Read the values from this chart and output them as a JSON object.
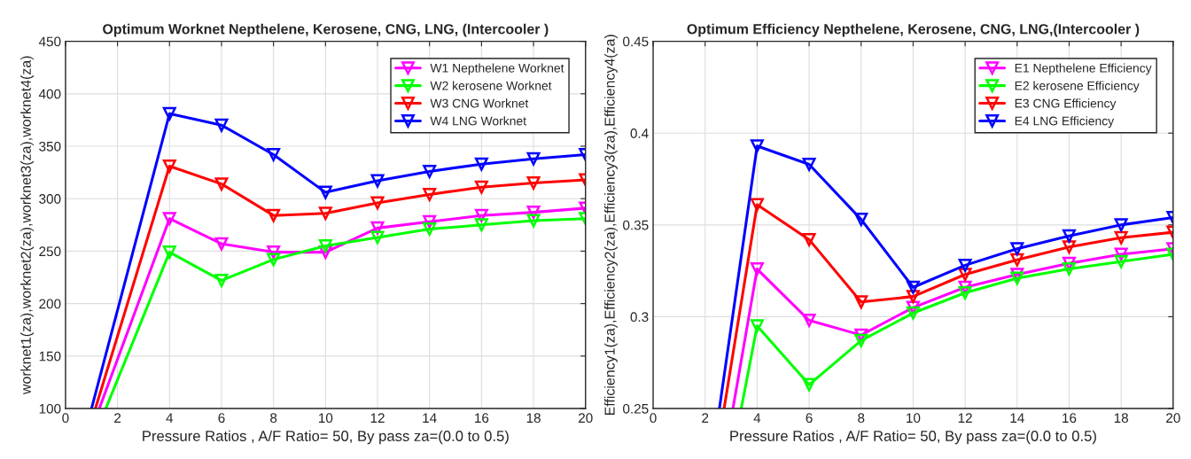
{
  "chart_data": [
    {
      "type": "line",
      "title": "Optimum Worknet Nepthelene, Kerosene, CNG, LNG, (Intercooler )",
      "xlabel": "Pressure Ratios , A/F Ratio= 50, By pass za=(0.0 to 0.5)",
      "ylabel": "worknet1(za),worknet2(za),worknet3(za),worknet4(za)",
      "xlim": [
        0,
        20
      ],
      "xticks": [
        0,
        2,
        4,
        6,
        8,
        10,
        12,
        14,
        16,
        18,
        20
      ],
      "ylim": [
        100,
        450
      ],
      "yticks": [
        100,
        150,
        200,
        250,
        300,
        350,
        400,
        450
      ],
      "grid": true,
      "legend": "top right",
      "marker": "triangle",
      "line_style": "solid",
      "series": [
        {
          "name": "W1 Nepthelene Worknet",
          "color": "#ff00ff",
          "x": [
            1.3,
            4,
            6,
            8,
            10,
            12,
            14,
            16,
            18,
            20
          ],
          "values": [
            100,
            281,
            257,
            249,
            249,
            272,
            278,
            284,
            287,
            291
          ]
        },
        {
          "name": "W2 kerosene Worknet",
          "color": "#00ff00",
          "x": [
            1.55,
            4,
            6,
            8,
            10,
            12,
            14,
            16,
            18,
            20
          ],
          "values": [
            100,
            249,
            222,
            242,
            255,
            263,
            271,
            275,
            279,
            281
          ]
        },
        {
          "name": "W3 CNG Worknet",
          "color": "#ff0000",
          "x": [
            1.15,
            4,
            6,
            8,
            10,
            12,
            14,
            16,
            18,
            20
          ],
          "values": [
            100,
            331,
            314,
            284,
            286,
            296,
            304,
            311,
            315,
            318
          ]
        },
        {
          "name": "W4 LNG Worknet",
          "color": "#0000ff",
          "x": [
            1.0,
            4,
            6,
            8,
            10,
            12,
            14,
            16,
            18,
            20
          ],
          "values": [
            100,
            381,
            370,
            342,
            306,
            317,
            326,
            333,
            338,
            342
          ]
        }
      ]
    },
    {
      "type": "line",
      "title": "Optimum Efficiency Nepthelene, Kerosene, CNG, LNG,(Intercooler )",
      "xlabel": "Pressure Ratios , A/F Ratio= 50, By pass za=(0.0 to 0.5)",
      "ylabel": "Efficiency1(za),Efficiency2(za),Efficiency3(za),Efficiency4(za)",
      "xlim": [
        0,
        20
      ],
      "xticks": [
        0,
        2,
        4,
        6,
        8,
        10,
        12,
        14,
        16,
        18,
        20
      ],
      "ylim": [
        0.25,
        0.45
      ],
      "yticks": [
        0.25,
        0.3,
        0.35,
        0.4,
        0.45
      ],
      "grid": true,
      "legend": "top right",
      "marker": "triangle",
      "line_style": "solid",
      "series": [
        {
          "name": "E1 Nepthelene Efficiency",
          "color": "#ff00ff",
          "x": [
            3.07,
            4,
            6,
            8,
            10,
            12,
            14,
            16,
            18,
            20
          ],
          "values": [
            0.25,
            0.326,
            0.298,
            0.29,
            0.305,
            0.316,
            0.323,
            0.329,
            0.334,
            0.337
          ]
        },
        {
          "name": "E2 kerosene Efficiency",
          "color": "#00ff00",
          "x": [
            3.39,
            4,
            6,
            8,
            10,
            12,
            14,
            16,
            18,
            20
          ],
          "values": [
            0.25,
            0.295,
            0.263,
            0.287,
            0.302,
            0.313,
            0.321,
            0.326,
            0.33,
            0.334
          ]
        },
        {
          "name": "E3 CNG Efficiency",
          "color": "#ff0000",
          "x": [
            2.73,
            4,
            6,
            8,
            10,
            12,
            14,
            16,
            18,
            20
          ],
          "values": [
            0.25,
            0.361,
            0.342,
            0.308,
            0.311,
            0.323,
            0.331,
            0.338,
            0.343,
            0.346
          ]
        },
        {
          "name": "E4 LNG Efficiency",
          "color": "#0000ff",
          "x": [
            2.55,
            4,
            6,
            8,
            10,
            12,
            14,
            16,
            18,
            20
          ],
          "values": [
            0.25,
            0.393,
            0.383,
            0.353,
            0.316,
            0.328,
            0.337,
            0.344,
            0.35,
            0.354
          ]
        }
      ]
    }
  ]
}
